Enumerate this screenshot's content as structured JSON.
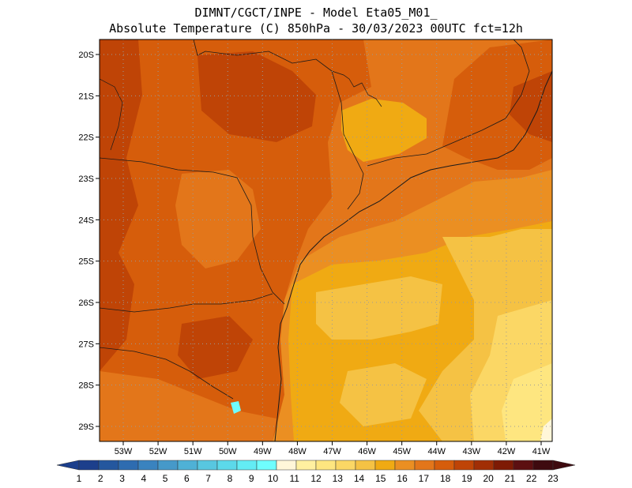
{
  "header": {
    "title_line1": "DIMNT/CGCT/INPE -  Model Eta05_M01_",
    "title_line2": "Absolute Temperature (C) 850hPa -  30/03/2023 00UTC fct=12h"
  },
  "map": {
    "lat_ticks": [
      "20S",
      "21S",
      "22S",
      "23S",
      "24S",
      "25S",
      "26S",
      "27S",
      "28S",
      "29S"
    ],
    "lon_ticks": [
      "53W",
      "52W",
      "51W",
      "50W",
      "49W",
      "48W",
      "47W",
      "46W",
      "45W",
      "44W",
      "43W",
      "42W",
      "41W"
    ],
    "lat_values": [
      -20,
      -21,
      -22,
      -23,
      -24,
      -25,
      -26,
      -27,
      -28,
      -29
    ],
    "lon_values": [
      -53,
      -52,
      -51,
      -50,
      -49,
      -48,
      -47,
      -46,
      -45,
      -44,
      -43,
      -42,
      -41
    ]
  },
  "colorbar": {
    "labels": [
      "1",
      "2",
      "3",
      "4",
      "5",
      "6",
      "7",
      "8",
      "9",
      "10",
      "11",
      "12",
      "13",
      "14",
      "15",
      "16",
      "17",
      "18",
      "19",
      "20",
      "21",
      "22",
      "23"
    ],
    "colors": [
      "#1c3f8c",
      "#24579e",
      "#2e6cb0",
      "#3a83bf",
      "#4699c9",
      "#4fb1d6",
      "#58c7e0",
      "#5cd9ea",
      "#63ecf4",
      "#6ffefe",
      "#fff6d9",
      "#fff0a0",
      "#fee680",
      "#fbd765",
      "#f5c244",
      "#f0aa13",
      "#eb8f22",
      "#e3761a",
      "#d65d0b",
      "#bf4406",
      "#a12e05",
      "#7e1a04",
      "#5c0f11",
      "#3e0a0f"
    ],
    "left_arrow_color": "#1c3f8c",
    "right_arrow_color": "#3e0a0f"
  },
  "palette": {
    "temp_20": "#bf4406",
    "temp_19": "#d65d0b",
    "temp_18": "#e3761a",
    "temp_17": "#eb8f22",
    "temp_16": "#f0aa13",
    "temp_15": "#f5c244",
    "temp_14": "#fbd765",
    "temp_13": "#fee680",
    "temp_11": "#fff6d9",
    "temp_10": "#6ffefe",
    "border": "#1a1a1a"
  }
}
